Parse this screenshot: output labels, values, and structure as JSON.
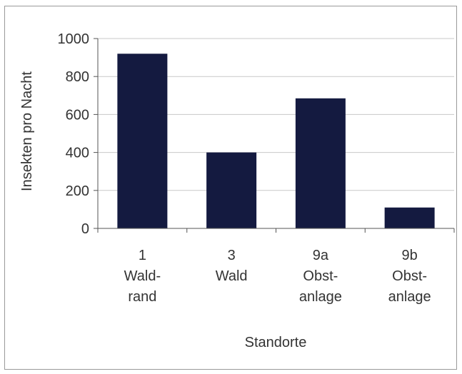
{
  "chart_data": {
    "type": "bar",
    "categories": [
      [
        "1",
        "Wald-",
        "rand"
      ],
      [
        "3",
        "Wald"
      ],
      [
        "9a",
        "Obst-",
        "anlage"
      ],
      [
        "9b",
        "Obst-",
        "anlage"
      ]
    ],
    "values": [
      920,
      400,
      685,
      110
    ],
    "title": "",
    "xlabel": "Standorte",
    "ylabel": "Insekten pro Nacht",
    "ylim": [
      0,
      1000
    ],
    "yticks": [
      0,
      200,
      400,
      600,
      800,
      1000
    ],
    "grid": true,
    "legend": "none",
    "colors": {
      "bar": "#141a40",
      "grid": "#c8c8c8",
      "axis": "#555555",
      "frame": "#9a9a9a"
    }
  }
}
